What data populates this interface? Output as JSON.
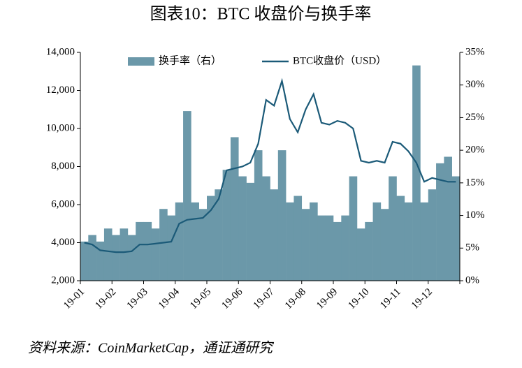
{
  "chart_data": {
    "type": "bar-line",
    "title": "图表10：BTC 收盘价与换手率",
    "source": "资料来源：CoinMarketCap，通证通研究",
    "categories": [
      "19-01",
      null,
      null,
      null,
      "19-02",
      null,
      null,
      null,
      "19-03",
      null,
      null,
      null,
      "19-04",
      null,
      null,
      null,
      "19-05",
      null,
      null,
      null,
      "19-06",
      null,
      null,
      null,
      "19-07",
      null,
      null,
      null,
      "19-08",
      null,
      null,
      null,
      "19-09",
      null,
      null,
      null,
      "19-10",
      null,
      null,
      null,
      "19-11",
      null,
      null,
      null,
      "19-12",
      null,
      null,
      null
    ],
    "series": [
      {
        "name": "换手率（右）",
        "type": "bar",
        "axis": "y2",
        "color": "#6b98a9",
        "values": [
          6,
          7,
          6,
          8,
          7,
          8,
          7,
          9,
          9,
          8,
          11,
          10,
          12,
          26,
          12,
          11,
          13,
          14,
          17,
          22,
          16,
          15,
          20,
          16,
          14,
          20,
          12,
          13,
          11,
          12,
          10,
          10,
          9,
          10,
          16,
          8,
          9,
          12,
          11,
          16,
          13,
          12,
          33,
          12,
          14,
          18,
          19,
          16
        ]
      },
      {
        "name": "BTC收盘价（USD）",
        "type": "line",
        "color": "#1b5a78",
        "values": [
          4000,
          3900,
          3600,
          3550,
          3500,
          3500,
          3550,
          3900,
          3900,
          3950,
          4000,
          4050,
          5000,
          5200,
          5250,
          5300,
          5700,
          6300,
          7800,
          7900,
          8000,
          8200,
          9200,
          11500,
          11200,
          12500,
          10500,
          9800,
          11000,
          11800,
          10300,
          10200,
          10400,
          10300,
          10000,
          8300,
          8200,
          8300,
          8200,
          9300,
          9200,
          8800,
          8200,
          7200,
          7400,
          7300,
          7200,
          7200
        ]
      }
    ],
    "ylim": [
      2000,
      14000
    ],
    "yticks": [
      {
        "value": 2000,
        "label": "2,000"
      },
      {
        "value": 4000,
        "label": "4,000"
      },
      {
        "value": 6000,
        "label": "6,000"
      },
      {
        "value": 8000,
        "label": "8,000"
      },
      {
        "value": 10000,
        "label": "10,000"
      },
      {
        "value": 12000,
        "label": "12,000"
      },
      {
        "value": 14000,
        "label": "14,000"
      }
    ],
    "y2lim": [
      0,
      35
    ],
    "y2ticks": [
      {
        "value": 0,
        "label": "0%"
      },
      {
        "value": 5,
        "label": "5%"
      },
      {
        "value": 10,
        "label": "10%"
      },
      {
        "value": 15,
        "label": "15%"
      },
      {
        "value": 20,
        "label": "20%"
      },
      {
        "value": 25,
        "label": "25%"
      },
      {
        "value": 30,
        "label": "30%"
      },
      {
        "value": 35,
        "label": "35%"
      }
    ]
  }
}
